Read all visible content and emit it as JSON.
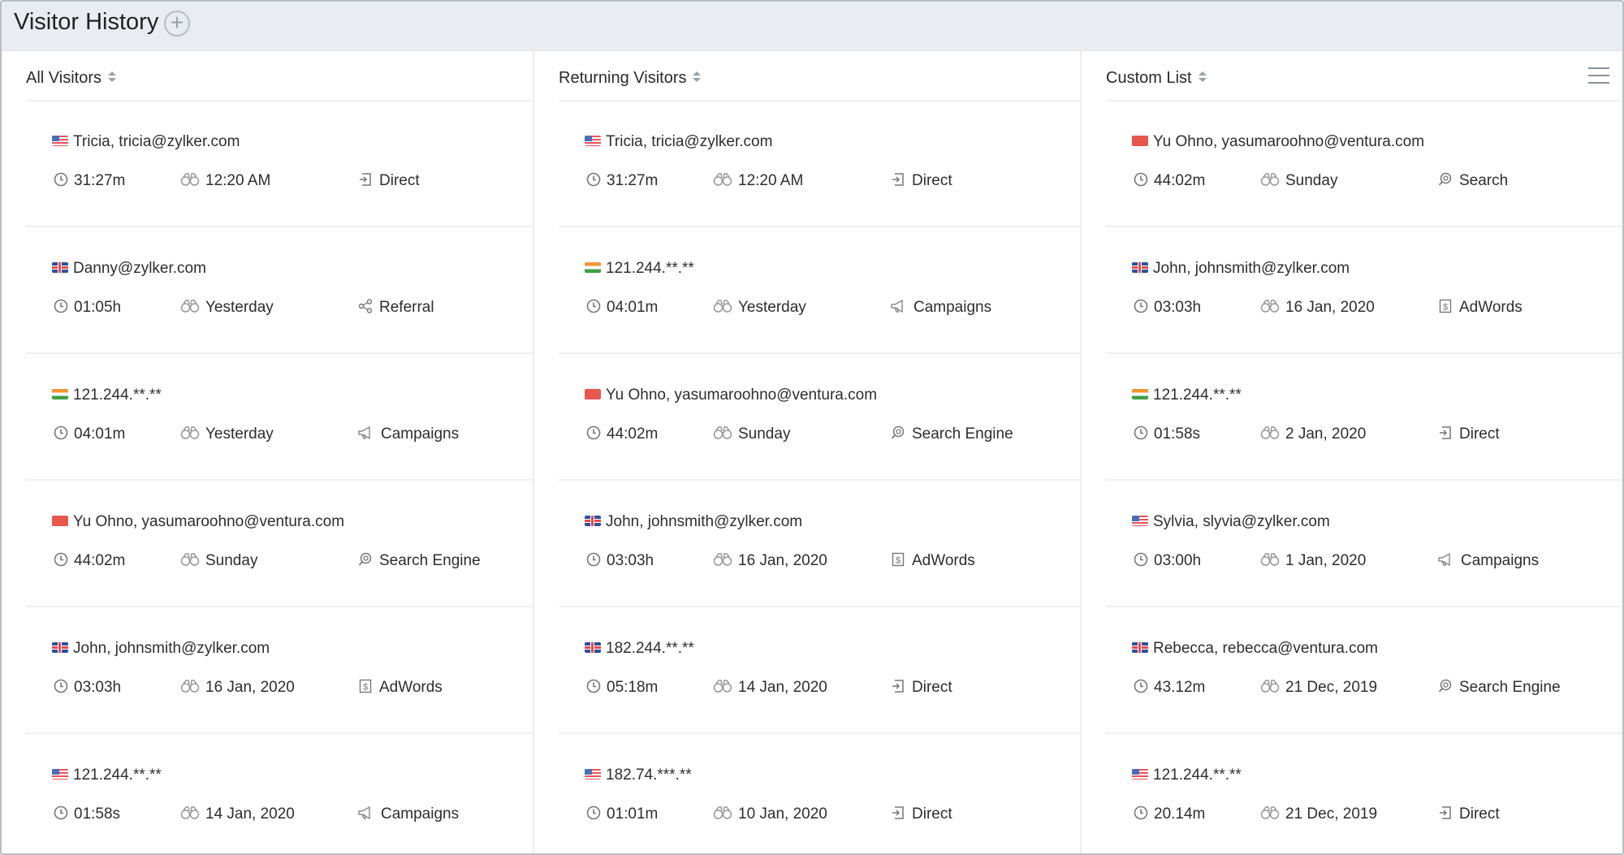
{
  "title": "Visitor History",
  "add_button": "+",
  "columns": [
    {
      "header": "All Visitors",
      "rows": [
        {
          "flag": "us",
          "name": "Tricia, tricia@zylker.com",
          "duration": "31:27m",
          "visit": "12:20 AM",
          "source": "Direct",
          "source_icon": "direct-icon"
        },
        {
          "flag": "uk",
          "name": "Danny@zylker.com",
          "duration": "01:05h",
          "visit": "Yesterday",
          "source": "Referral",
          "source_icon": "referral-icon"
        },
        {
          "flag": "in",
          "name": "121.244.**.**",
          "duration": "04:01m",
          "visit": "Yesterday",
          "source": "Campaigns",
          "source_icon": "campaigns-icon"
        },
        {
          "flag": "cn",
          "name": "Yu Ohno, yasumaroohno@ventura.com",
          "duration": "44:02m",
          "visit": "Sunday",
          "source": "Search Engine",
          "source_icon": "search-engine-icon"
        },
        {
          "flag": "uk",
          "name": "John, johnsmith@zylker.com",
          "duration": "03:03h",
          "visit": "16 Jan, 2020",
          "source": "AdWords",
          "source_icon": "adwords-icon"
        },
        {
          "flag": "us",
          "name": "121.244.**.**",
          "duration": "01:58s",
          "visit": "14 Jan, 2020",
          "source": "Campaigns",
          "source_icon": "campaigns-icon"
        }
      ]
    },
    {
      "header": "Returning Visitors",
      "rows": [
        {
          "flag": "us",
          "name": "Tricia, tricia@zylker.com",
          "duration": "31:27m",
          "visit": "12:20 AM",
          "source": "Direct",
          "source_icon": "direct-icon"
        },
        {
          "flag": "in",
          "name": "121.244.**.**",
          "duration": "04:01m",
          "visit": "Yesterday",
          "source": "Campaigns",
          "source_icon": "campaigns-icon"
        },
        {
          "flag": "cn",
          "name": "Yu Ohno, yasumaroohno@ventura.com",
          "duration": "44:02m",
          "visit": "Sunday",
          "source": "Search Engine",
          "source_icon": "search-engine-icon"
        },
        {
          "flag": "uk",
          "name": "John, johnsmith@zylker.com",
          "duration": "03:03h",
          "visit": "16 Jan, 2020",
          "source": "AdWords",
          "source_icon": "adwords-icon"
        },
        {
          "flag": "uk",
          "name": "182.244.**.**",
          "duration": "05:18m",
          "visit": "14 Jan, 2020",
          "source": "Direct",
          "source_icon": "direct-icon"
        },
        {
          "flag": "us",
          "name": "182.74.***.**",
          "duration": "01:01m",
          "visit": "10 Jan, 2020",
          "source": "Direct",
          "source_icon": "direct-icon"
        }
      ]
    },
    {
      "header": "Custom List",
      "rows": [
        {
          "flag": "cn",
          "name": "Yu Ohno, yasumaroohno@ventura.com",
          "duration": "44:02m",
          "visit": "Sunday",
          "source": "Search",
          "source_icon": "search-engine-icon"
        },
        {
          "flag": "uk",
          "name": "John, johnsmith@zylker.com",
          "duration": "03:03h",
          "visit": "16 Jan, 2020",
          "source": "AdWords",
          "source_icon": "adwords-icon"
        },
        {
          "flag": "in",
          "name": "121.244.**.**",
          "duration": "01:58s",
          "visit": "2 Jan, 2020",
          "source": "Direct",
          "source_icon": "direct-icon"
        },
        {
          "flag": "us",
          "name": "Sylvia, slyvia@zylker.com",
          "duration": "03:00h",
          "visit": "1 Jan, 2020",
          "source": "Campaigns",
          "source_icon": "campaigns-icon"
        },
        {
          "flag": "uk",
          "name": "Rebecca, rebecca@ventura.com",
          "duration": "43.12m",
          "visit": "21 Dec, 2019",
          "source": "Search Engine",
          "source_icon": "search-engine-icon"
        },
        {
          "flag": "us",
          "name": "121.244.**.**",
          "duration": "20.14m",
          "visit": "21 Dec, 2019",
          "source": "Direct",
          "source_icon": "direct-icon"
        }
      ]
    }
  ]
}
